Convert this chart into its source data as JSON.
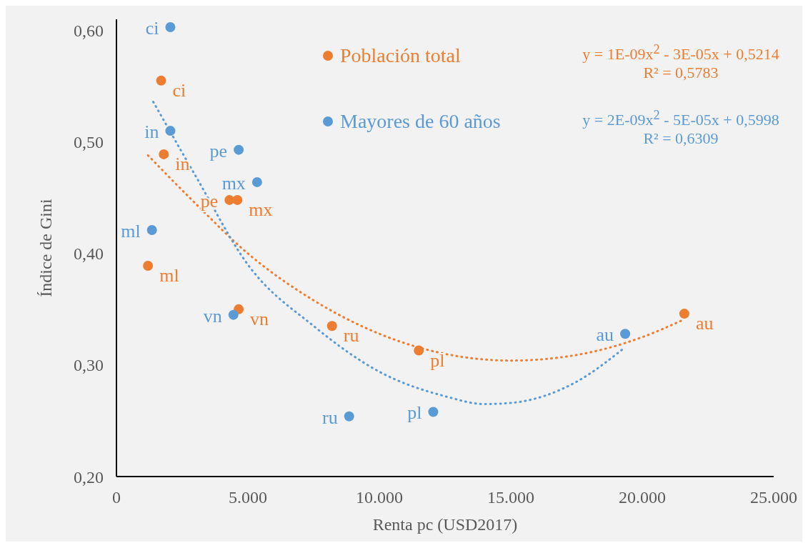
{
  "chart_data": {
    "type": "scatter",
    "xlabel": "Renta pc (USD2017)",
    "ylabel": "Índice de Gini",
    "xlim": [
      0,
      25000
    ],
    "xticks": [
      0,
      {
        "value": 5000,
        "label": "5.000"
      },
      {
        "value": 10000,
        "label": "10.000"
      },
      {
        "value": 15000,
        "label": "15.000"
      },
      {
        "value": 20000,
        "label": "20.000"
      },
      {
        "value": 25000,
        "label": "25.000"
      }
    ],
    "ylim": [
      0.2,
      0.61
    ],
    "yticks": [
      {
        "value": 0.2,
        "label": "0,20"
      },
      {
        "value": 0.3,
        "label": "0,30"
      },
      {
        "value": 0.4,
        "label": "0,40"
      },
      {
        "value": 0.5,
        "label": "0,50"
      },
      {
        "value": 0.6,
        "label": "0,60"
      }
    ],
    "grid": false,
    "legend": "top",
    "marker": "circle",
    "series": [
      {
        "name": "Población total",
        "color": "#ed7d31",
        "x": [
          1700,
          1800,
          4300,
          4600,
          1200,
          4650,
          8200,
          11500,
          21600
        ],
        "values": [
          0.555,
          0.489,
          0.448,
          0.448,
          0.389,
          0.35,
          0.335,
          0.313,
          0.346
        ]
      },
      {
        "name": "Mayores de 60 años",
        "color": "#5b9bd5",
        "x": [
          2050,
          2050,
          4650,
          5350,
          1350,
          4450,
          8850,
          12050,
          19350
        ],
        "values": [
          0.603,
          0.51,
          0.493,
          0.464,
          0.421,
          0.345,
          0.254,
          0.258,
          0.328
        ]
      },
      {
        "type": "line",
        "marker": "none",
        "line_style": "dotted",
        "color": "#ed7d31",
        "x": [
          1200,
          3000,
          5000,
          7500,
          10000,
          12500,
          15000,
          17500,
          20000,
          21600
        ],
        "values": [
          0.488,
          0.445,
          0.4,
          0.358,
          0.328,
          0.31,
          0.304,
          0.309,
          0.325,
          0.341
        ]
      },
      {
        "type": "line",
        "marker": "none",
        "line_style": "dotted",
        "color": "#5b9bd5",
        "x": [
          1400,
          3000,
          5000,
          7500,
          10000,
          12500,
          14000,
          15000,
          17500,
          19300
        ],
        "values": [
          0.536,
          0.47,
          0.39,
          0.335,
          0.294,
          0.272,
          0.265,
          0.266,
          0.285,
          0.315
        ]
      }
    ],
    "annotations": [
      "y = 1E-09x$^{2}$ - 3E-05x + 0,5214\nR² = 0,5783",
      "y = 2E-09x$^{2}$ - 5E-05x + 0,5998\nR² = 0,6309",
      {
        "text": "ci",
        "x": 1700,
        "y": 0.555
      },
      {
        "text": "in",
        "x": 1800,
        "y": 0.489
      },
      {
        "text": "pe",
        "x": 4300,
        "y": 0.448
      },
      {
        "text": "mx",
        "x": 4600,
        "y": 0.448
      },
      {
        "text": "ml",
        "x": 1200,
        "y": 0.389
      },
      {
        "text": "vn",
        "x": 4650,
        "y": 0.35
      },
      {
        "text": "ru",
        "x": 8200,
        "y": 0.335
      },
      {
        "text": "pl",
        "x": 11500,
        "y": 0.313
      },
      {
        "text": "au",
        "x": 21600,
        "y": 0.346
      },
      {
        "text": "ci",
        "x": 2050,
        "y": 0.603
      },
      {
        "text": "in",
        "x": 2050,
        "y": 0.51
      },
      {
        "text": "pe",
        "x": 4650,
        "y": 0.493
      },
      {
        "text": "mx",
        "x": 5350,
        "y": 0.464
      },
      {
        "text": "ml",
        "x": 1350,
        "y": 0.421
      },
      {
        "text": "vn",
        "x": 4450,
        "y": 0.345
      },
      {
        "text": "ru",
        "x": 8850,
        "y": 0.254
      },
      {
        "text": "pl",
        "x": 12050,
        "y": 0.258
      },
      {
        "text": "au",
        "x": 19350,
        "y": 0.328
      }
    ]
  }
}
